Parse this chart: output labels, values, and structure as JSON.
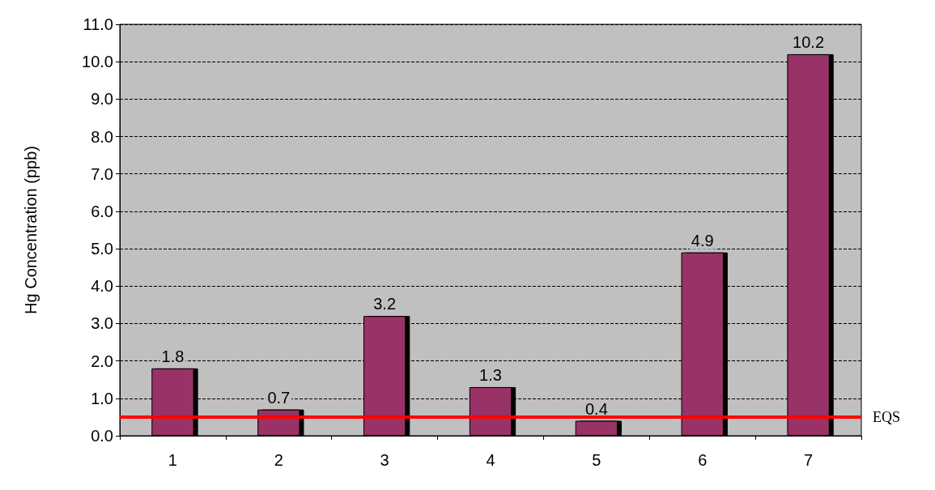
{
  "chart_data": {
    "type": "bar",
    "ylabel": "Hg Concentration (ppb)",
    "categories": [
      "1",
      "2",
      "3",
      "4",
      "5",
      "6",
      "7"
    ],
    "values": [
      1.8,
      0.7,
      3.2,
      1.3,
      0.4,
      4.9,
      10.2
    ],
    "color": "#993366",
    "data_labels": true,
    "ylim": [
      0,
      11
    ],
    "yticks": [
      {
        "value": 0,
        "label": "0.0"
      },
      {
        "value": 1,
        "label": "1.0"
      },
      {
        "value": 2,
        "label": "2.0"
      },
      {
        "value": 3,
        "label": "3.0"
      },
      {
        "value": 4,
        "label": "4.0"
      },
      {
        "value": 5,
        "label": "5.0"
      },
      {
        "value": 6,
        "label": "6.0"
      },
      {
        "value": 7,
        "label": "7.0"
      },
      {
        "value": 8,
        "label": "8.0"
      },
      {
        "value": 9,
        "label": "9.0"
      },
      {
        "value": 10,
        "label": "10.0"
      },
      {
        "value": 11,
        "label": "11.0"
      }
    ],
    "grid": "y",
    "ref_lines": [
      {
        "axis": "y",
        "value": 0.5,
        "label": "EQS",
        "color": "#ff0000"
      }
    ]
  }
}
